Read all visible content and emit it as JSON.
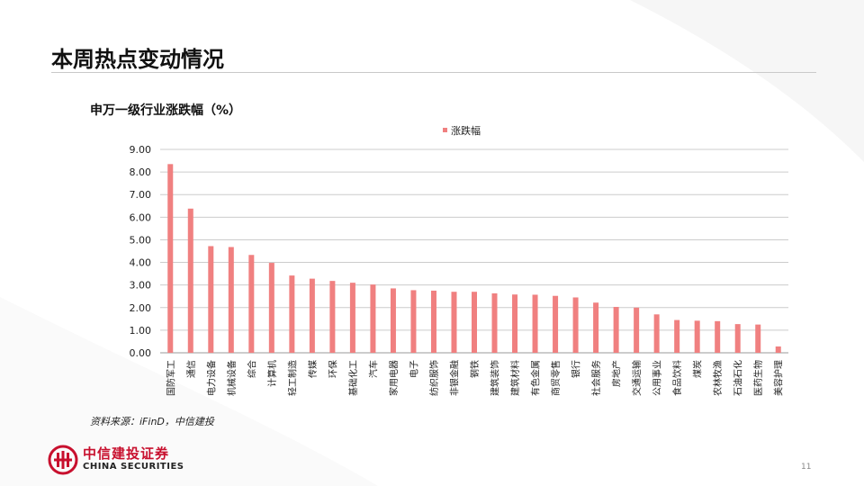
{
  "page": {
    "title": "本周热点变动情况",
    "source": "资料来源：iFinD，中信建投",
    "page_number": "11"
  },
  "logo": {
    "cn": "中信建投证券",
    "en": "CHINA SECURITIES"
  },
  "colors": {
    "bar": "#f08080",
    "grid": "#cccccc",
    "brand_red": "#c8102e"
  },
  "chart_data": {
    "type": "bar",
    "title": "申万一级行业涨跌幅（%）",
    "legend": [
      "涨跌幅"
    ],
    "legend_position": "top-center",
    "xlabel": "",
    "ylabel": "",
    "ylim": [
      0,
      9
    ],
    "yticks": [
      "0.00",
      "1.00",
      "2.00",
      "3.00",
      "4.00",
      "5.00",
      "6.00",
      "7.00",
      "8.00",
      "9.00"
    ],
    "grid": true,
    "categories": [
      "国防军工",
      "通信",
      "电力设备",
      "机械设备",
      "综合",
      "计算机",
      "轻工制造",
      "传媒",
      "环保",
      "基础化工",
      "汽车",
      "家用电器",
      "电子",
      "纺织服饰",
      "非银金融",
      "钢铁",
      "建筑装饰",
      "建筑材料",
      "有色金属",
      "商贸零售",
      "银行",
      "社会服务",
      "房地产",
      "交通运输",
      "公用事业",
      "食品饮料",
      "煤炭",
      "农林牧渔",
      "石油石化",
      "医药生物",
      "美容护理"
    ],
    "values": [
      8.35,
      6.38,
      4.72,
      4.68,
      4.33,
      3.98,
      3.42,
      3.28,
      3.18,
      3.1,
      3.02,
      2.85,
      2.77,
      2.75,
      2.7,
      2.7,
      2.63,
      2.58,
      2.57,
      2.52,
      2.45,
      2.22,
      2.03,
      2.0,
      1.7,
      1.45,
      1.42,
      1.4,
      1.27,
      1.25,
      0.28
    ]
  }
}
